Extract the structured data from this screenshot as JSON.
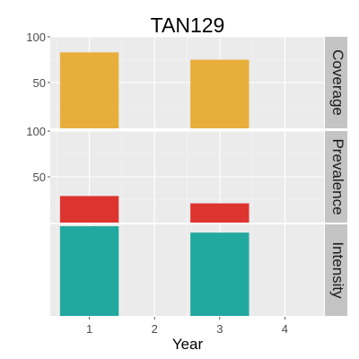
{
  "chart_data": {
    "type": "bar",
    "title": "TAN129",
    "xlabel": "Year",
    "x_ticks": [
      1,
      2,
      3,
      4
    ],
    "xlim": [
      0.4,
      4.6
    ],
    "grid": true,
    "panels": [
      {
        "name": "Coverage",
        "color": "#E8AE3C",
        "ylim": [
          0,
          100
        ],
        "y_ticks": [
          50,
          100
        ],
        "x": [
          1,
          3
        ],
        "values": [
          83,
          75
        ]
      },
      {
        "name": "Prevalence",
        "color": "#DD3430",
        "ylim": [
          0,
          100
        ],
        "y_ticks": [
          50,
          100
        ],
        "x": [
          1,
          3
        ],
        "values": [
          29,
          21
        ]
      },
      {
        "name": "Intensity",
        "color": "#22A99F",
        "ylim": [
          0,
          100
        ],
        "y_ticks": [],
        "x": [
          1,
          3
        ],
        "values": [
          98,
          91
        ]
      }
    ]
  }
}
